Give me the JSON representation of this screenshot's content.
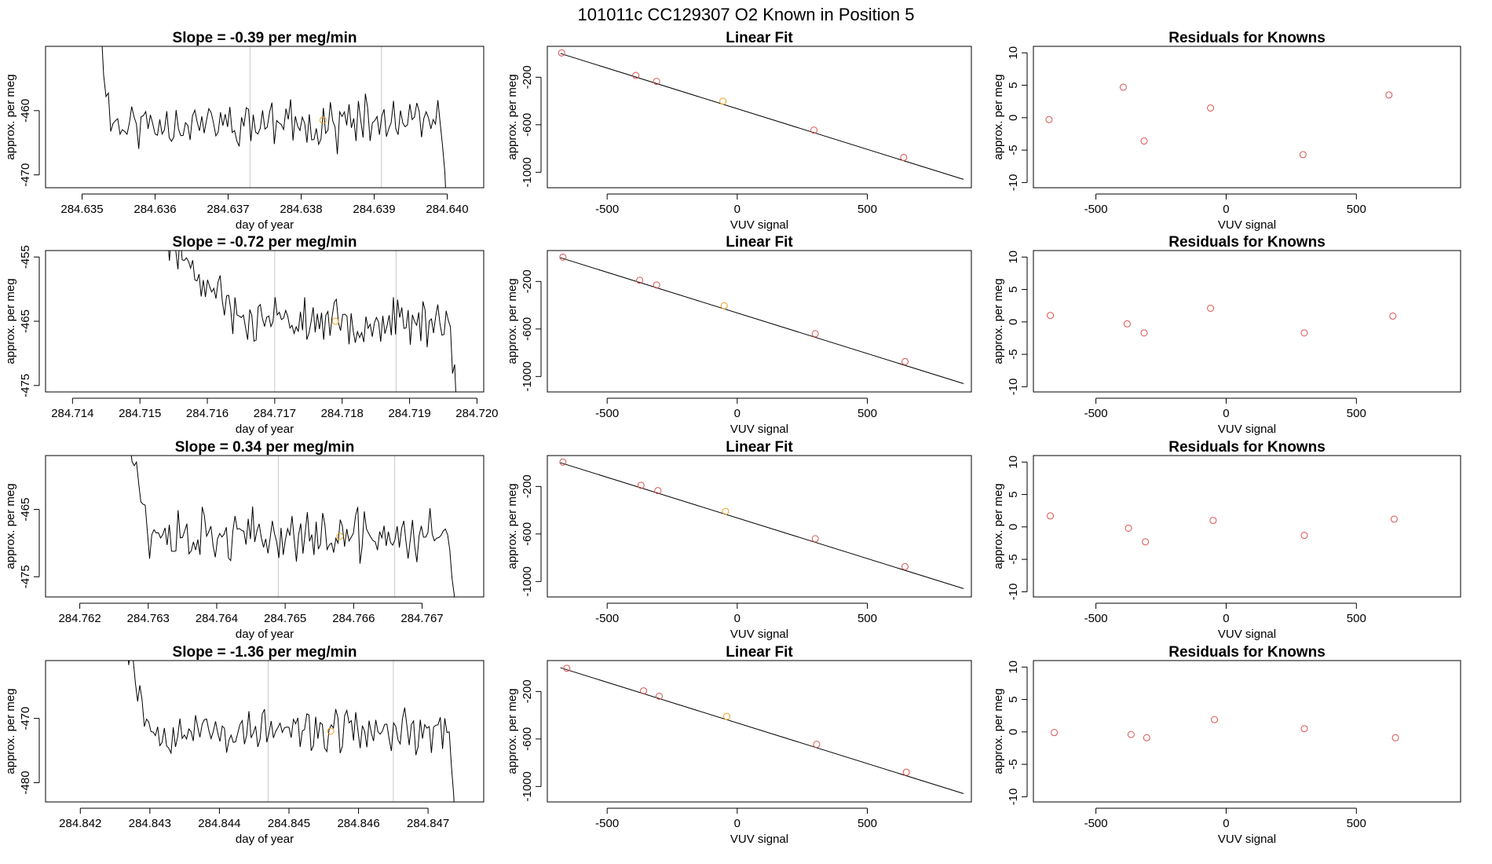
{
  "title": "101011c      CC129307    O2 Known in Position  5",
  "colors": {
    "known_point": "#d9534f",
    "unknown_point": "#f0a020",
    "trace": "#000000",
    "fit_line": "#000000",
    "marker_line": "#c8c8c8"
  },
  "chart_data": [
    {
      "row": 1,
      "type": "line",
      "title": "Slope =  -0.39  per meg/min",
      "xlabel": "day of year",
      "ylabel": "approx. per meg",
      "xlim": [
        284.6345,
        284.6405
      ],
      "ylim": [
        -472,
        -450
      ],
      "xticks": [
        284.635,
        284.636,
        284.637,
        284.638,
        284.639,
        284.64
      ],
      "xtick_labels": [
        "284.635",
        "284.636",
        "284.637",
        "284.638",
        "284.639",
        "284.640"
      ],
      "yticks": [
        -460,
        -470
      ],
      "ytick_labels": [
        "-460",
        "-470"
      ],
      "x_start": 284.6352,
      "x_end": 284.64,
      "segment_markers": [
        284.6373,
        284.6391
      ],
      "unknown_point": {
        "x": 284.6383,
        "y": -461.5
      },
      "grow": 0.0002,
      "base": -462,
      "amp": 3.2,
      "seed": 11
    },
    {
      "row": 2,
      "type": "line",
      "title": "Slope =  -0.72  per meg/min",
      "xlabel": "day of year",
      "ylabel": "approx. per meg",
      "xlim": [
        284.7136,
        284.7201
      ],
      "ylim": [
        -476,
        -454
      ],
      "xticks": [
        284.714,
        284.715,
        284.716,
        284.717,
        284.718,
        284.719,
        284.72
      ],
      "xtick_labels": [
        "284.714",
        "284.715",
        "284.716",
        "284.717",
        "284.718",
        "284.719",
        "284.720"
      ],
      "yticks": [
        -455,
        -465,
        -475
      ],
      "ytick_labels": [
        "-455",
        "-465",
        "-475"
      ],
      "x_start": 284.715,
      "x_end": 284.7197,
      "segment_markers": [
        284.717,
        284.7188
      ],
      "unknown_point": {
        "x": 284.7179,
        "y": -465
      },
      "grow": 0.0015,
      "base": -465,
      "amp": 3.0,
      "seed": 23
    },
    {
      "row": 3,
      "type": "line",
      "title": "Slope =  0.34  per meg/min",
      "xlabel": "day of year",
      "ylabel": "approx. per meg",
      "xlim": [
        284.7615,
        284.7679
      ],
      "ylim": [
        -478,
        -457
      ],
      "xticks": [
        284.762,
        284.763,
        284.764,
        284.765,
        284.766,
        284.767
      ],
      "xtick_labels": [
        "284.762",
        "284.763",
        "284.764",
        "284.765",
        "284.766",
        "284.767"
      ],
      "yticks": [
        -465,
        -475
      ],
      "ytick_labels": [
        "-465",
        "-475"
      ],
      "x_start": 284.7627,
      "x_end": 284.7675,
      "segment_markers": [
        284.7649,
        284.7666
      ],
      "unknown_point": {
        "x": 284.7658,
        "y": -469
      },
      "grow": 0.0003,
      "base": -469,
      "amp": 3.2,
      "seed": 37
    },
    {
      "row": 4,
      "type": "line",
      "title": "Slope =  -1.36  per meg/min",
      "xlabel": "day of year",
      "ylabel": "approx. per meg",
      "xlim": [
        284.8415,
        284.8478
      ],
      "ylim": [
        -483,
        -461
      ],
      "xticks": [
        284.842,
        284.843,
        284.844,
        284.845,
        284.846,
        284.847
      ],
      "xtick_labels": [
        "284.842",
        "284.843",
        "284.844",
        "284.845",
        "284.846",
        "284.847"
      ],
      "yticks": [
        -470,
        -480
      ],
      "ytick_labels": [
        "-470",
        "-480"
      ],
      "x_start": 284.8426,
      "x_end": 284.8474,
      "segment_markers": [
        284.8447,
        284.8465
      ],
      "unknown_point": {
        "x": 284.8456,
        "y": -472
      },
      "grow": 0.0004,
      "base": -472,
      "amp": 3.0,
      "seed": 53
    },
    {
      "row": 1,
      "type": "scatter",
      "title": "Linear Fit",
      "xlabel": "VUV signal",
      "ylabel": "approx. per meg",
      "xlim": [
        -730,
        900
      ],
      "ylim": [
        -1130,
        60
      ],
      "xticks": [
        -500,
        0,
        500
      ],
      "xtick_labels": [
        "-500",
        "0",
        "500"
      ],
      "yticks": [
        -200,
        -600,
        -1000
      ],
      "ytick_labels": [
        "-200",
        "-600",
        "-1000"
      ],
      "fit_line": {
        "x0": -680,
        "y0": 0,
        "x1": 870,
        "y1": -1060
      },
      "knowns": [
        [
          -675,
          5
        ],
        [
          -390,
          -185
        ],
        [
          -310,
          -235
        ],
        [
          295,
          -645
        ],
        [
          640,
          -875
        ]
      ],
      "unknown": [
        -55,
        -402
      ]
    },
    {
      "row": 2,
      "type": "scatter",
      "title": "Linear Fit",
      "xlabel": "VUV signal",
      "ylabel": "approx. per meg",
      "xlim": [
        -730,
        900
      ],
      "ylim": [
        -1130,
        60
      ],
      "xticks": [
        -500,
        0,
        500
      ],
      "xtick_labels": [
        "-500",
        "0",
        "500"
      ],
      "yticks": [
        -200,
        -600,
        -1000
      ],
      "ytick_labels": [
        "-200",
        "-600",
        "-1000"
      ],
      "fit_line": {
        "x0": -680,
        "y0": 0,
        "x1": 870,
        "y1": -1060
      },
      "knowns": [
        [
          -670,
          5
        ],
        [
          -375,
          -190
        ],
        [
          -310,
          -230
        ],
        [
          300,
          -640
        ],
        [
          645,
          -875
        ]
      ],
      "unknown": [
        -50,
        -405
      ]
    },
    {
      "row": 3,
      "type": "scatter",
      "title": "Linear Fit",
      "xlabel": "VUV signal",
      "ylabel": "approx. per meg",
      "xlim": [
        -730,
        900
      ],
      "ylim": [
        -1130,
        60
      ],
      "xticks": [
        -500,
        0,
        500
      ],
      "xtick_labels": [
        "-500",
        "0",
        "500"
      ],
      "yticks": [
        -200,
        -600,
        -1000
      ],
      "ytick_labels": [
        "-200",
        "-600",
        "-1000"
      ],
      "fit_line": {
        "x0": -680,
        "y0": 0,
        "x1": 870,
        "y1": -1060
      },
      "knowns": [
        [
          -670,
          5
        ],
        [
          -370,
          -190
        ],
        [
          -305,
          -235
        ],
        [
          300,
          -640
        ],
        [
          645,
          -875
        ]
      ],
      "unknown": [
        -45,
        -410
      ]
    },
    {
      "row": 4,
      "type": "scatter",
      "title": "Linear Fit",
      "xlabel": "VUV signal",
      "ylabel": "approx. per meg",
      "xlim": [
        -730,
        900
      ],
      "ylim": [
        -1130,
        60
      ],
      "xticks": [
        -500,
        0,
        500
      ],
      "xtick_labels": [
        "-500",
        "0",
        "500"
      ],
      "yticks": [
        -200,
        -600,
        -1000
      ],
      "ytick_labels": [
        "-200",
        "-600",
        "-1000"
      ],
      "fit_line": {
        "x0": -680,
        "y0": 0,
        "x1": 870,
        "y1": -1060
      },
      "knowns": [
        [
          -655,
          -5
        ],
        [
          -360,
          -195
        ],
        [
          -300,
          -240
        ],
        [
          305,
          -645
        ],
        [
          650,
          -880
        ]
      ],
      "unknown": [
        -40,
        -410
      ]
    },
    {
      "row": 1,
      "type": "scatter",
      "title": "Residuals for Knowns",
      "xlabel": "VUV signal",
      "ylabel": "approx. per meg",
      "xlim": [
        -740,
        900
      ],
      "ylim": [
        -10.8,
        11
      ],
      "xticks": [
        -500,
        0,
        500
      ],
      "xtick_labels": [
        "-500",
        "0",
        "500"
      ],
      "yticks": [
        10,
        5,
        0,
        -5,
        -10
      ],
      "ytick_labels": [
        "10",
        "5",
        "0",
        "-5",
        "-10"
      ],
      "points": [
        [
          -680,
          -0.3
        ],
        [
          -395,
          4.7
        ],
        [
          -315,
          -3.6
        ],
        [
          -60,
          1.5
        ],
        [
          295,
          -5.7
        ],
        [
          625,
          3.5
        ]
      ]
    },
    {
      "row": 2,
      "type": "scatter",
      "title": "Residuals for Knowns",
      "xlabel": "VUV signal",
      "ylabel": "approx. per meg",
      "xlim": [
        -740,
        900
      ],
      "ylim": [
        -10.8,
        11
      ],
      "xticks": [
        -500,
        0,
        500
      ],
      "xtick_labels": [
        "-500",
        "0",
        "500"
      ],
      "yticks": [
        10,
        5,
        0,
        -5,
        -10
      ],
      "ytick_labels": [
        "10",
        "5",
        "0",
        "-5",
        "-10"
      ],
      "points": [
        [
          -675,
          1.0
        ],
        [
          -380,
          -0.3
        ],
        [
          -315,
          -1.7
        ],
        [
          -60,
          2.1
        ],
        [
          300,
          -1.7
        ],
        [
          640,
          0.9
        ]
      ]
    },
    {
      "row": 3,
      "type": "scatter",
      "title": "Residuals for Knowns",
      "xlabel": "VUV signal",
      "ylabel": "approx. per meg",
      "xlim": [
        -740,
        900
      ],
      "ylim": [
        -10.8,
        11
      ],
      "xticks": [
        -500,
        0,
        500
      ],
      "xtick_labels": [
        "-500",
        "0",
        "500"
      ],
      "yticks": [
        10,
        5,
        0,
        -5,
        -10
      ],
      "ytick_labels": [
        "10",
        "5",
        "0",
        "-5",
        "-10"
      ],
      "points": [
        [
          -675,
          1.7
        ],
        [
          -375,
          -0.2
        ],
        [
          -310,
          -2.3
        ],
        [
          -50,
          1.0
        ],
        [
          300,
          -1.3
        ],
        [
          645,
          1.2
        ]
      ]
    },
    {
      "row": 4,
      "type": "scatter",
      "title": "Residuals for Knowns",
      "xlabel": "VUV signal",
      "ylabel": "approx. per meg",
      "xlim": [
        -740,
        900
      ],
      "ylim": [
        -10.8,
        11
      ],
      "xticks": [
        -500,
        0,
        500
      ],
      "xtick_labels": [
        "-500",
        "0",
        "500"
      ],
      "yticks": [
        10,
        5,
        0,
        -5,
        -10
      ],
      "ytick_labels": [
        "10",
        "5",
        "0",
        "-5",
        "-10"
      ],
      "points": [
        [
          -660,
          -0.1
        ],
        [
          -365,
          -0.4
        ],
        [
          -305,
          -0.9
        ],
        [
          -45,
          1.9
        ],
        [
          300,
          0.5
        ],
        [
          650,
          -0.9
        ]
      ]
    }
  ]
}
